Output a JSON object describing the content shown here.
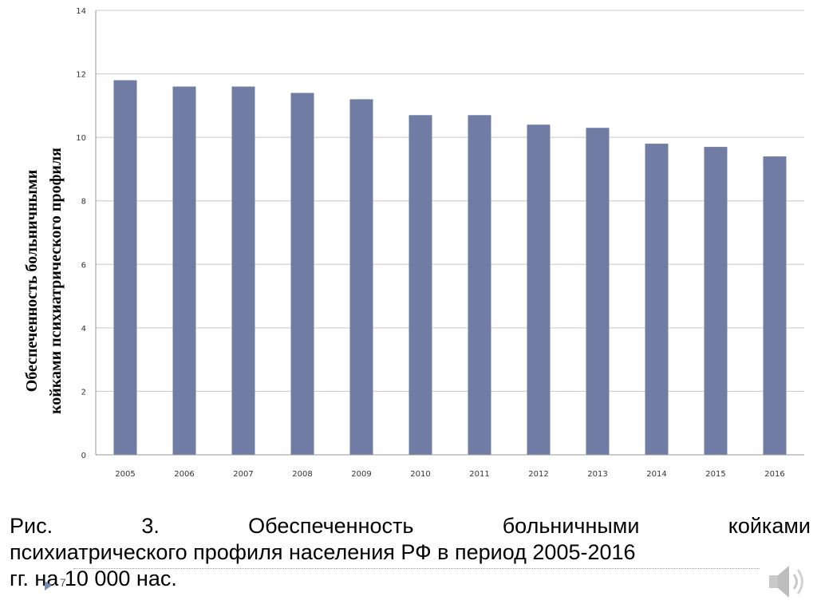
{
  "chart_data": {
    "type": "bar",
    "categories": [
      "2005",
      "2006",
      "2007",
      "2008",
      "2009",
      "2010",
      "2011",
      "2012",
      "2013",
      "2014",
      "2015",
      "2016"
    ],
    "values": [
      11.8,
      11.6,
      11.6,
      11.4,
      11.2,
      10.7,
      10.7,
      10.4,
      10.3,
      9.8,
      9.7,
      9.4
    ],
    "ylabel_line1": "Обеспеченность больничными",
    "ylabel_line2": "койками психиатрического профиля",
    "ylim": [
      0,
      14
    ],
    "yticks": [
      0,
      2,
      4,
      6,
      8,
      10,
      12,
      14
    ],
    "grid": true,
    "bar_color": "#717ca4",
    "grid_color": "#c8c8c8"
  },
  "caption": {
    "words_line1": [
      "Рис.",
      "3.",
      "Обеспеченность",
      "больничными",
      "койками"
    ],
    "line2": "психиатрического профиля населения РФ в период 2005-2016",
    "line3": "гг. на 10 000 нас."
  },
  "slide": {
    "page_number": "7",
    "speaker_icon": "speaker-icon",
    "nav_icon": "triangle-right-icon"
  }
}
